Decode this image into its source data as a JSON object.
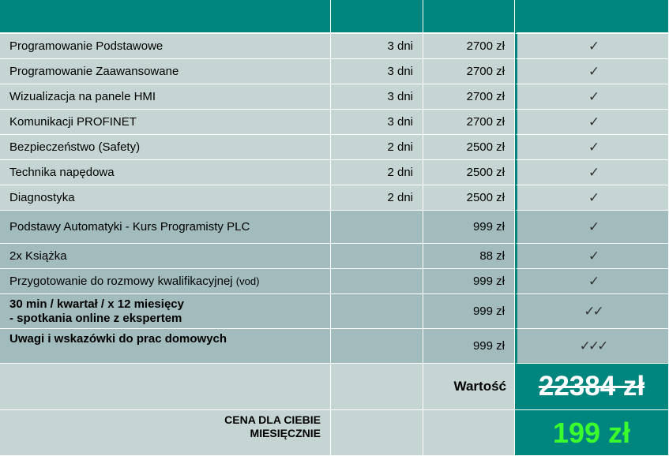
{
  "courses": [
    {
      "name": "Programowanie Podstawowe",
      "days": "3 dni",
      "price": "2700 zł"
    },
    {
      "name": "Programowanie Zaawansowane",
      "days": "3 dni",
      "price": "2700 zł"
    },
    {
      "name": "Wizualizacja na panele HMI",
      "days": "3 dni",
      "price": "2700 zł"
    },
    {
      "name": "Komunikacji PROFINET",
      "days": "3 dni",
      "price": "2700 zł"
    },
    {
      "name": "Bezpieczeństwo (Safety)",
      "days": "2 dni",
      "price": "2500 zł"
    },
    {
      "name": "Technika napędowa",
      "days": "2 dni",
      "price": "2500 zł"
    },
    {
      "name": "Diagnostyka",
      "days": "2 dni",
      "price": "2500 zł"
    }
  ],
  "extras": [
    {
      "name": "Podstawy Automatyki - Kurs Programisty PLC",
      "price": "999 zł"
    },
    {
      "name": "2x Książka",
      "price": "88 zł"
    },
    {
      "name": "Przygotowanie do rozmowy kwalifikacyjnej",
      "name_suffix": "(vod)",
      "price": "999 zł"
    }
  ],
  "mentoring": {
    "line1": "30 min / kwartał / x 12 miesięcy",
    "line2": "- spotkania online z ekspertem",
    "price": "999 zł"
  },
  "homework": {
    "name": "Uwagi i wskazówki do prac domowych",
    "price": "999 zł"
  },
  "checks": {
    "single": "✓",
    "double": "✓✓",
    "triple": "✓✓✓"
  },
  "summary": {
    "value_label": "Wartość",
    "old_price": "22384 zł",
    "price_label_line1": "CENA DLA CIEBIE",
    "price_label_line2": "MIESIĘCZNIE",
    "new_price": "199 zł"
  },
  "colors": {
    "header": "#00857f",
    "light_row": "#c5d5d4",
    "dark_row": "#a2bbbc",
    "new_price": "#3bfc2c"
  }
}
